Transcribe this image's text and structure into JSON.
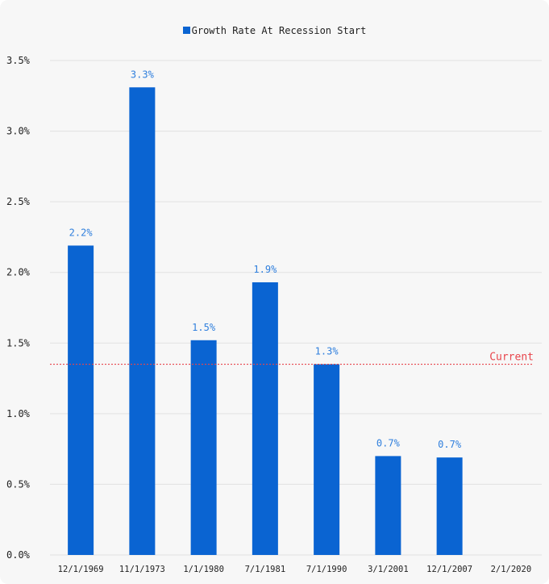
{
  "chart_data": {
    "type": "bar",
    "categories": [
      "12/1/1969",
      "11/1/1973",
      "1/1/1980",
      "7/1/1981",
      "7/1/1990",
      "3/1/2001",
      "12/1/2007",
      "2/1/2020"
    ],
    "series": [
      {
        "name": "Growth Rate At Recession Start",
        "values": [
          2.19,
          3.31,
          1.52,
          1.93,
          1.35,
          0.7,
          0.69,
          null
        ],
        "data_labels": [
          "2.2%",
          "3.3%",
          "1.5%",
          "1.9%",
          "1.3%",
          "0.7%",
          "0.7%",
          ""
        ]
      }
    ],
    "ylim": [
      0,
      3.5
    ],
    "yticks": [
      0,
      0.5,
      1.0,
      1.5,
      2.0,
      2.5,
      3.0,
      3.5
    ],
    "ytick_labels": [
      "0.0%",
      "0.5%",
      "1.0%",
      "1.5%",
      "2.0%",
      "2.5%",
      "3.0%",
      "3.5%"
    ],
    "reference_line": {
      "label": "Current",
      "value": 1.35,
      "style": "dotted"
    },
    "legend_position": "top-center",
    "grid": true,
    "colors": {
      "bar": "#0a64d2",
      "label": "#2f7fdd",
      "reference": "#e8454c",
      "grid": "#e2e2e2",
      "tick_text": "#222222"
    }
  }
}
